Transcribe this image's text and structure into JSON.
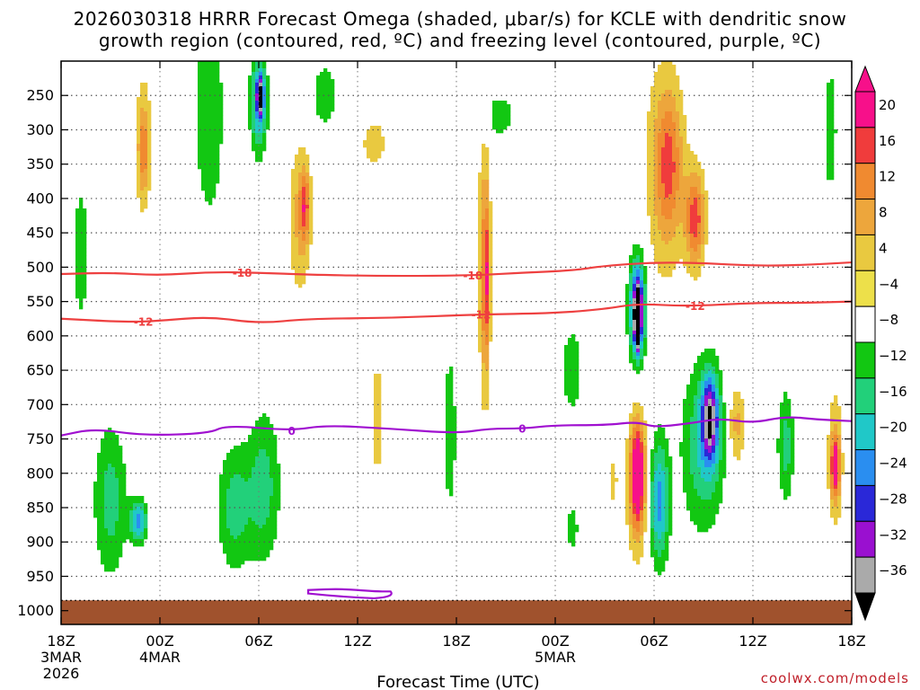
{
  "chart_data": {
    "type": "heatmap",
    "title_line1": "2026030318 HRRR Forecast Omega (shaded, μbar/s) for KCLE with dendritic snow",
    "title_line2": "growth region (contoured, red, ºC) and freezing level (contoured, purple, ºC)",
    "xlabel": "Forecast Time (UTC)",
    "credit": "coolwx.com/models",
    "x_range_hours": [
      0,
      48
    ],
    "x_ticks": [
      {
        "hour": 0,
        "label": "18Z",
        "sub1": "3MAR",
        "sub2": "2026"
      },
      {
        "hour": 6,
        "label": "00Z",
        "sub1": "4MAR",
        "sub2": ""
      },
      {
        "hour": 12,
        "label": "06Z",
        "sub1": "",
        "sub2": ""
      },
      {
        "hour": 18,
        "label": "12Z",
        "sub1": "",
        "sub2": ""
      },
      {
        "hour": 24,
        "label": "18Z",
        "sub1": "",
        "sub2": ""
      },
      {
        "hour": 30,
        "label": "00Z",
        "sub1": "5MAR",
        "sub2": ""
      },
      {
        "hour": 36,
        "label": "06Z",
        "sub1": "",
        "sub2": ""
      },
      {
        "hour": 42,
        "label": "12Z",
        "sub1": "",
        "sub2": ""
      },
      {
        "hour": 48,
        "label": "18Z",
        "sub1": "",
        "sub2": ""
      }
    ],
    "y_ticks_hpa": [
      250,
      300,
      350,
      400,
      450,
      500,
      550,
      600,
      650,
      700,
      750,
      800,
      850,
      900,
      950,
      1000
    ],
    "y_range_hpa": [
      200,
      1020
    ],
    "ground_top_hpa": 985,
    "colorbar": {
      "labels": [
        "20",
        "16",
        "12",
        "8",
        "4",
        "−4",
        "−8",
        "−12",
        "−16",
        "−20",
        "−24",
        "−28",
        "−32",
        "−36"
      ],
      "colors_top_to_bottom": [
        "#f7108a",
        "#f03c3c",
        "#f08a30",
        "#eda63c",
        "#e9c940",
        "#ede04a",
        "#ffffff",
        "#12c712",
        "#22d07a",
        "#20c8c8",
        "#2a8ef0",
        "#2a28d8",
        "#9a10d0",
        "#aaaaaa"
      ]
    },
    "omega_blobs": [
      {
        "t": 5.0,
        "p": 320,
        "rt": 0.6,
        "rp": 120,
        "v": 6
      },
      {
        "t": 5.0,
        "p": 330,
        "rt": 0.3,
        "rp": 60,
        "v": 10
      },
      {
        "t": 3.0,
        "p": 840,
        "rt": 1.0,
        "rp": 110,
        "v": -10
      },
      {
        "t": 4.7,
        "p": 870,
        "rt": 0.5,
        "rp": 30,
        "v": -18
      },
      {
        "t": 1.2,
        "p": 480,
        "rt": 0.5,
        "rp": 110,
        "v": -7
      },
      {
        "t": 9.0,
        "p": 275,
        "rt": 0.9,
        "rp": 160,
        "v": -8
      },
      {
        "t": 12.0,
        "p": 260,
        "rt": 0.5,
        "rp": 70,
        "v": -18
      },
      {
        "t": 12.1,
        "p": 250,
        "rt": 0.2,
        "rp": 25,
        "v": -24
      },
      {
        "t": 10.5,
        "p": 850,
        "rt": 1.0,
        "rp": 90,
        "v": -10
      },
      {
        "t": 12.3,
        "p": 820,
        "rt": 1.0,
        "rp": 110,
        "v": -10
      },
      {
        "t": 14.5,
        "p": 430,
        "rt": 0.7,
        "rp": 110,
        "v": 9
      },
      {
        "t": 14.8,
        "p": 410,
        "rt": 0.3,
        "rp": 50,
        "v": 13
      },
      {
        "t": 16.0,
        "p": 250,
        "rt": 1.0,
        "rp": 60,
        "v": -6
      },
      {
        "t": 19.0,
        "p": 320,
        "rt": 1.2,
        "rp": 60,
        "v": 5
      },
      {
        "t": 19.2,
        "p": 720,
        "rt": 0.4,
        "rp": 110,
        "v": 6
      },
      {
        "t": 25.7,
        "p": 490,
        "rt": 0.4,
        "rp": 230,
        "v": 9
      },
      {
        "t": 25.8,
        "p": 520,
        "rt": 0.2,
        "rp": 110,
        "v": 14
      },
      {
        "t": 23.6,
        "p": 740,
        "rt": 0.5,
        "rp": 150,
        "v": -6
      },
      {
        "t": 26.5,
        "p": 280,
        "rt": 1.3,
        "rp": 40,
        "v": -6
      },
      {
        "t": 31.0,
        "p": 650,
        "rt": 0.8,
        "rp": 80,
        "v": -6
      },
      {
        "t": 35.0,
        "p": 560,
        "rt": 0.6,
        "rp": 90,
        "v": -10
      },
      {
        "t": 35.0,
        "p": 560,
        "rt": 0.4,
        "rp": 60,
        "v": -24
      },
      {
        "t": 35.0,
        "p": 580,
        "rt": 0.15,
        "rp": 35,
        "v": -40
      },
      {
        "t": 35.0,
        "p": 820,
        "rt": 0.7,
        "rp": 110,
        "v": 10
      },
      {
        "t": 35.0,
        "p": 800,
        "rt": 0.4,
        "rp": 70,
        "v": 22
      },
      {
        "t": 36.3,
        "p": 840,
        "rt": 0.6,
        "rp": 90,
        "v": -18
      },
      {
        "t": 36.6,
        "p": 360,
        "rt": 1.3,
        "rp": 180,
        "v": 7
      },
      {
        "t": 36.9,
        "p": 350,
        "rt": 0.8,
        "rp": 100,
        "v": 12
      },
      {
        "t": 38.5,
        "p": 430,
        "rt": 0.6,
        "rp": 70,
        "v": 18
      },
      {
        "t": 39.0,
        "p": 760,
        "rt": 1.3,
        "rp": 120,
        "v": -12
      },
      {
        "t": 39.4,
        "p": 720,
        "rt": 0.5,
        "rp": 60,
        "v": -26
      },
      {
        "t": 41.0,
        "p": 730,
        "rt": 0.5,
        "rp": 60,
        "v": 10
      },
      {
        "t": 44.0,
        "p": 760,
        "rt": 0.5,
        "rp": 80,
        "v": -10
      },
      {
        "t": 47.0,
        "p": 780,
        "rt": 0.5,
        "rp": 110,
        "v": 8
      },
      {
        "t": 47.0,
        "p": 790,
        "rt": 0.25,
        "rp": 40,
        "v": 20
      },
      {
        "t": 46.7,
        "p": 300,
        "rt": 0.5,
        "rp": 120,
        "v": -6
      },
      {
        "t": 33.5,
        "p": 810,
        "rt": 0.3,
        "rp": 40,
        "v": 6
      },
      {
        "t": 31.0,
        "p": 880,
        "rt": 0.5,
        "rp": 40,
        "v": -6
      }
    ],
    "contours": [
      {
        "label": "-18",
        "color": "#ee4040",
        "points": [
          [
            0,
            510
          ],
          [
            3,
            508
          ],
          [
            6,
            512
          ],
          [
            9,
            507
          ],
          [
            12,
            508
          ],
          [
            15,
            511
          ],
          [
            20,
            513
          ],
          [
            25,
            512
          ],
          [
            28,
            508
          ],
          [
            31,
            505
          ],
          [
            33,
            498
          ],
          [
            36,
            493
          ],
          [
            39,
            494
          ],
          [
            42,
            498
          ],
          [
            45,
            497
          ],
          [
            48,
            493
          ]
        ],
        "label_hours": [
          11,
          25
        ]
      },
      {
        "label": "-12",
        "color": "#ee4040",
        "points": [
          [
            0,
            575
          ],
          [
            4,
            580
          ],
          [
            6,
            578
          ],
          [
            9,
            572
          ],
          [
            12,
            582
          ],
          [
            15,
            575
          ],
          [
            20,
            574
          ],
          [
            25,
            569
          ],
          [
            30,
            567
          ],
          [
            33,
            561
          ],
          [
            35,
            553
          ],
          [
            38,
            557
          ],
          [
            42,
            552
          ],
          [
            45,
            552
          ],
          [
            48,
            550
          ]
        ],
        "label_hours": [
          5,
          25.5,
          38.5
        ]
      },
      {
        "label": "0",
        "color": "#a010d0",
        "points": [
          [
            0,
            745
          ],
          [
            2,
            735
          ],
          [
            5,
            745
          ],
          [
            9,
            742
          ],
          [
            10,
            730
          ],
          [
            14,
            738
          ],
          [
            16,
            730
          ],
          [
            20,
            735
          ],
          [
            24,
            742
          ],
          [
            26,
            735
          ],
          [
            28,
            735
          ],
          [
            30,
            730
          ],
          [
            33,
            730
          ],
          [
            35,
            725
          ],
          [
            36,
            733
          ],
          [
            38,
            728
          ],
          [
            40,
            720
          ],
          [
            42,
            727
          ],
          [
            44,
            717
          ],
          [
            46,
            722
          ],
          [
            48,
            724
          ]
        ],
        "label_hours": [
          14,
          28
        ]
      },
      {
        "label": "0b",
        "color": "#a010d0",
        "points": [
          [
            15,
            970
          ],
          [
            17,
            968
          ],
          [
            19,
            972
          ],
          [
            20,
            972
          ]
        ],
        "label_hours": []
      }
    ]
  }
}
